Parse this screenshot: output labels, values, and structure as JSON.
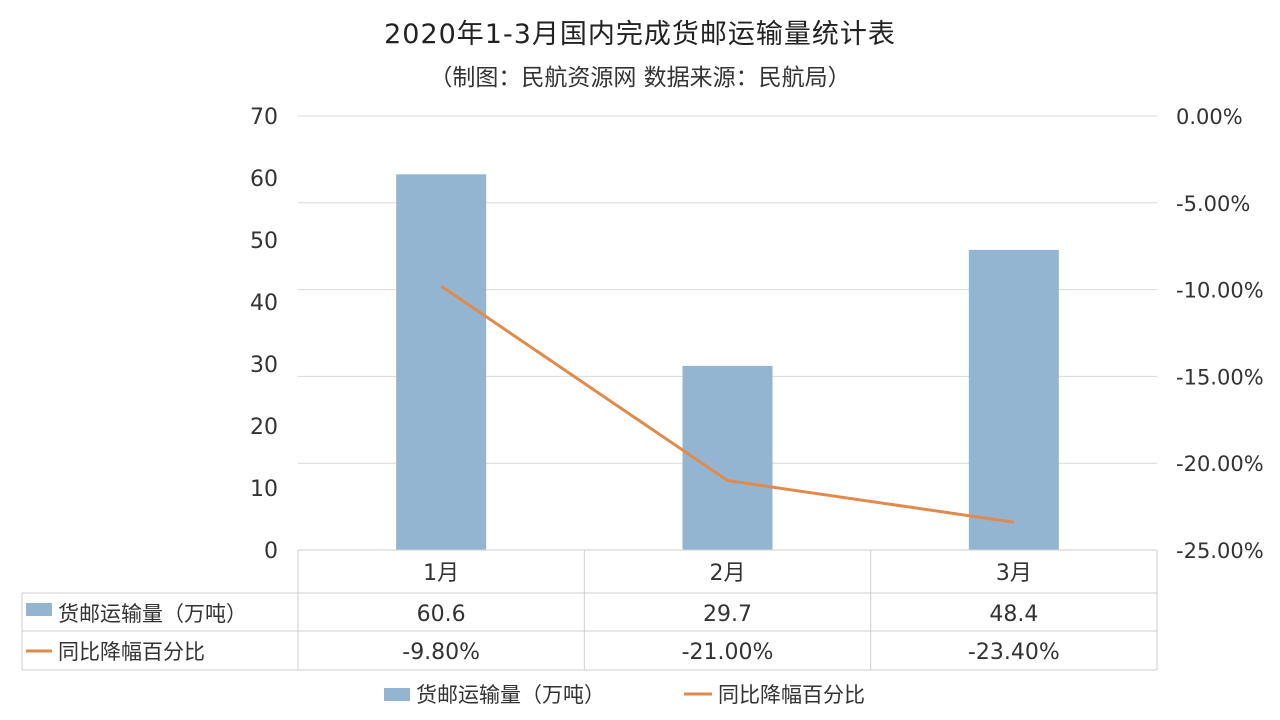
{
  "title": "2020年1-3月国内完成货邮运输量统计表",
  "subtitle": "（制图：民航资源网 数据来源：民航局）",
  "colors": {
    "bar": "#94B5D1",
    "line": "#E08A4C",
    "grid": "#D9D9D9",
    "text": "#333333"
  },
  "chart_data": {
    "type": "bar",
    "categories": [
      "1月",
      "2月",
      "3月"
    ],
    "series": [
      {
        "name": "货邮运输量（万吨）",
        "kind": "bar",
        "axis": "left",
        "values": [
          60.6,
          29.7,
          48.4
        ],
        "labels": [
          "60.6",
          "29.7",
          "48.4"
        ]
      },
      {
        "name": "同比降幅百分比",
        "kind": "line",
        "axis": "right",
        "values": [
          -9.8,
          -21.0,
          -23.4
        ],
        "labels": [
          "-9.80%",
          "-21.00%",
          "-23.40%"
        ]
      }
    ],
    "y_left": {
      "min": 0,
      "max": 70,
      "ticks": [
        "0",
        "10",
        "20",
        "30",
        "40",
        "50",
        "60",
        "70"
      ]
    },
    "y_right": {
      "min": -25,
      "max": 0,
      "ticks": [
        "-25.00%",
        "-20.00%",
        "-15.00%",
        "-10.00%",
        "-5.00%",
        "0.00%"
      ]
    },
    "grid": true,
    "data_table": true,
    "legend_position": "bottom"
  }
}
